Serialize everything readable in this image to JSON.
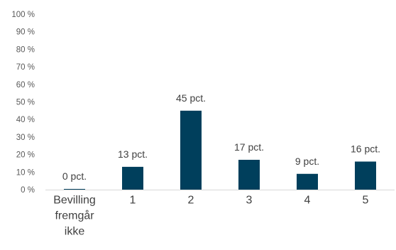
{
  "chart_data": {
    "type": "bar",
    "categories": [
      [
        "Bevilling",
        "fremgår",
        "ikke"
      ],
      "1",
      "2",
      "3",
      "4",
      "5"
    ],
    "values": [
      0.4,
      13,
      45,
      17,
      9,
      16
    ],
    "data_labels": [
      "0 pct.",
      "13 pct.",
      "45 pct.",
      "17 pct.",
      "9 pct.",
      "16 pct."
    ],
    "title": "",
    "xlabel": "",
    "ylabel": "",
    "ylim": [
      0,
      100
    ],
    "yticks": [
      "0 %",
      "10 %",
      "20 %",
      "30 %",
      "40 %",
      "50 %",
      "60 %",
      "70 %",
      "80 %",
      "90 %",
      "100 %"
    ],
    "grid": false,
    "legend": "none",
    "colors": {
      "bar": "#003f5c",
      "axis": "#d9d9d9"
    }
  }
}
